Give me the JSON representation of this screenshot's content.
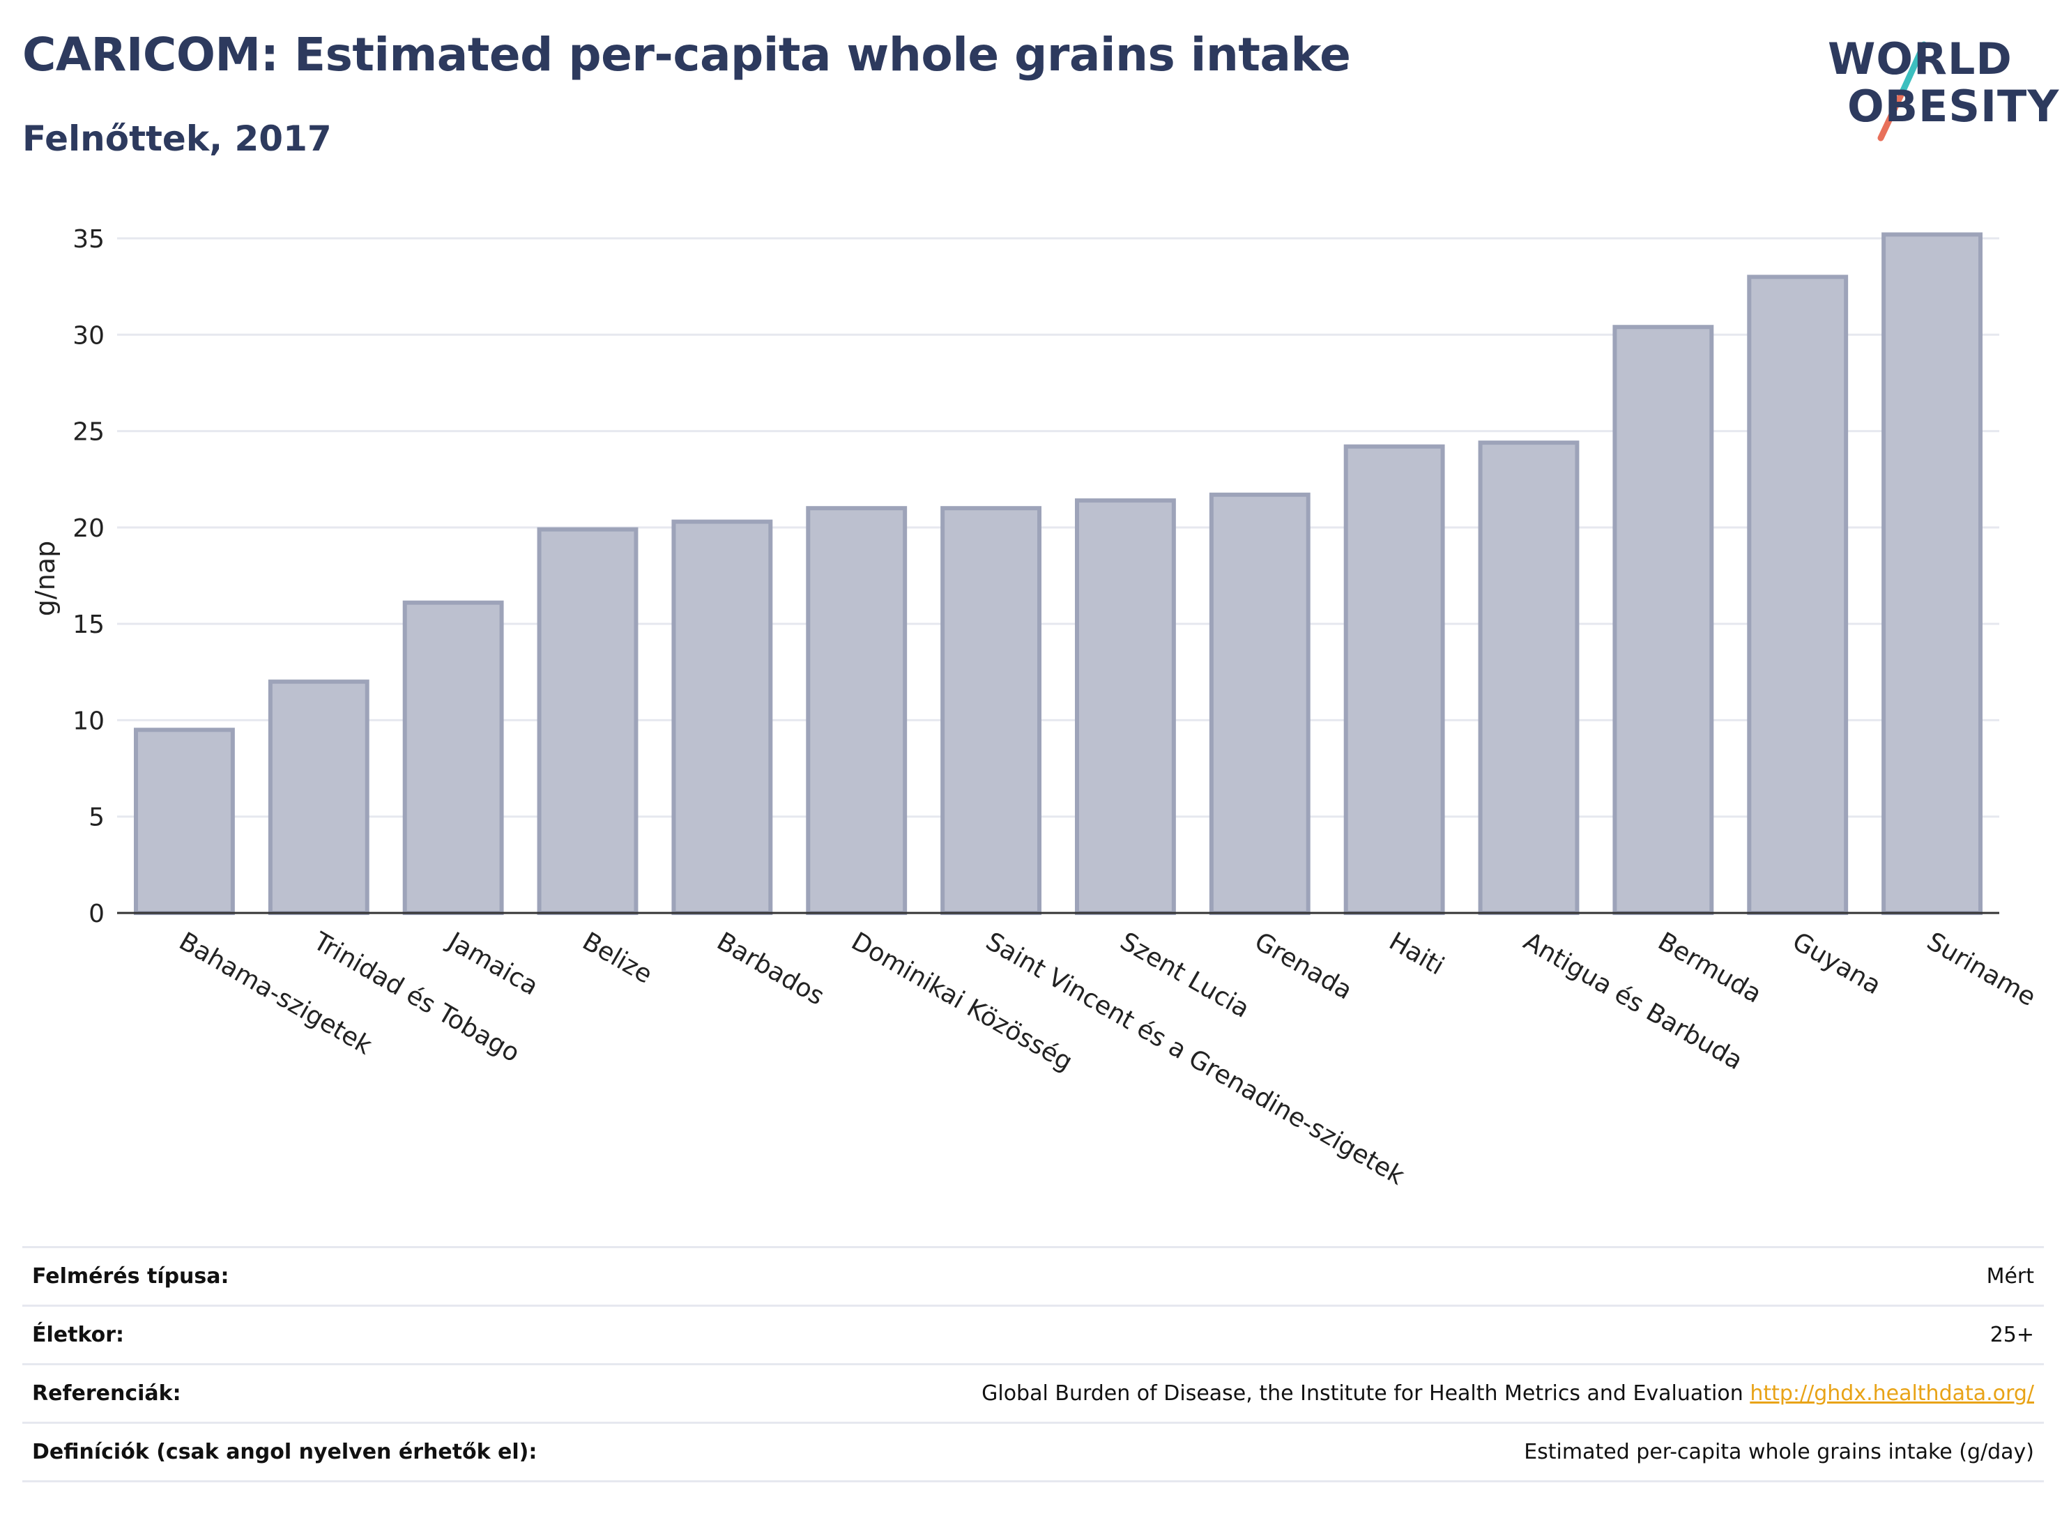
{
  "header": {
    "title": "CARICOM: Estimated per-capita whole grains intake",
    "subtitle": "Felnőttek, 2017"
  },
  "logo": {
    "line1": "WORLD",
    "line2": "OBESITY",
    "slash_colors": [
      "#3cbfbf",
      "#e8705a"
    ]
  },
  "chart_data": {
    "type": "bar",
    "categories": [
      "Bahama-szigetek",
      "Trinidad és Tobago",
      "Jamaica",
      "Belize",
      "Barbados",
      "Dominikai Közösség",
      "Saint Vincent és a Grenadine-szigetek",
      "Szent Lucia",
      "Grenada",
      "Haiti",
      "Antigua és Barbuda",
      "Bermuda",
      "Guyana",
      "Suriname"
    ],
    "values": [
      9.5,
      12.0,
      16.1,
      19.9,
      20.3,
      21.0,
      21.0,
      21.4,
      21.7,
      24.2,
      24.4,
      30.4,
      33.0,
      35.2
    ],
    "ylabel": "g/nap",
    "ylim": [
      0,
      35
    ],
    "yticks": [
      0,
      5,
      10,
      15,
      20,
      25,
      30,
      35
    ],
    "bar_fill": "#bcc0cf",
    "bar_stroke": "#9da3b9",
    "grid": true
  },
  "info": [
    {
      "label": "Felmérés típusa:",
      "value": "Mért"
    },
    {
      "label": "Életkor:",
      "value": "25+"
    },
    {
      "label": "Referenciák:",
      "value": "Global Burden of Disease, the Institute for Health Metrics and Evaluation",
      "link": "http://ghdx.healthdata.org/"
    },
    {
      "label": "Definíciók (csak angol nyelven érhetők el):",
      "value": "Estimated per-capita whole grains intake (g/day)"
    }
  ]
}
